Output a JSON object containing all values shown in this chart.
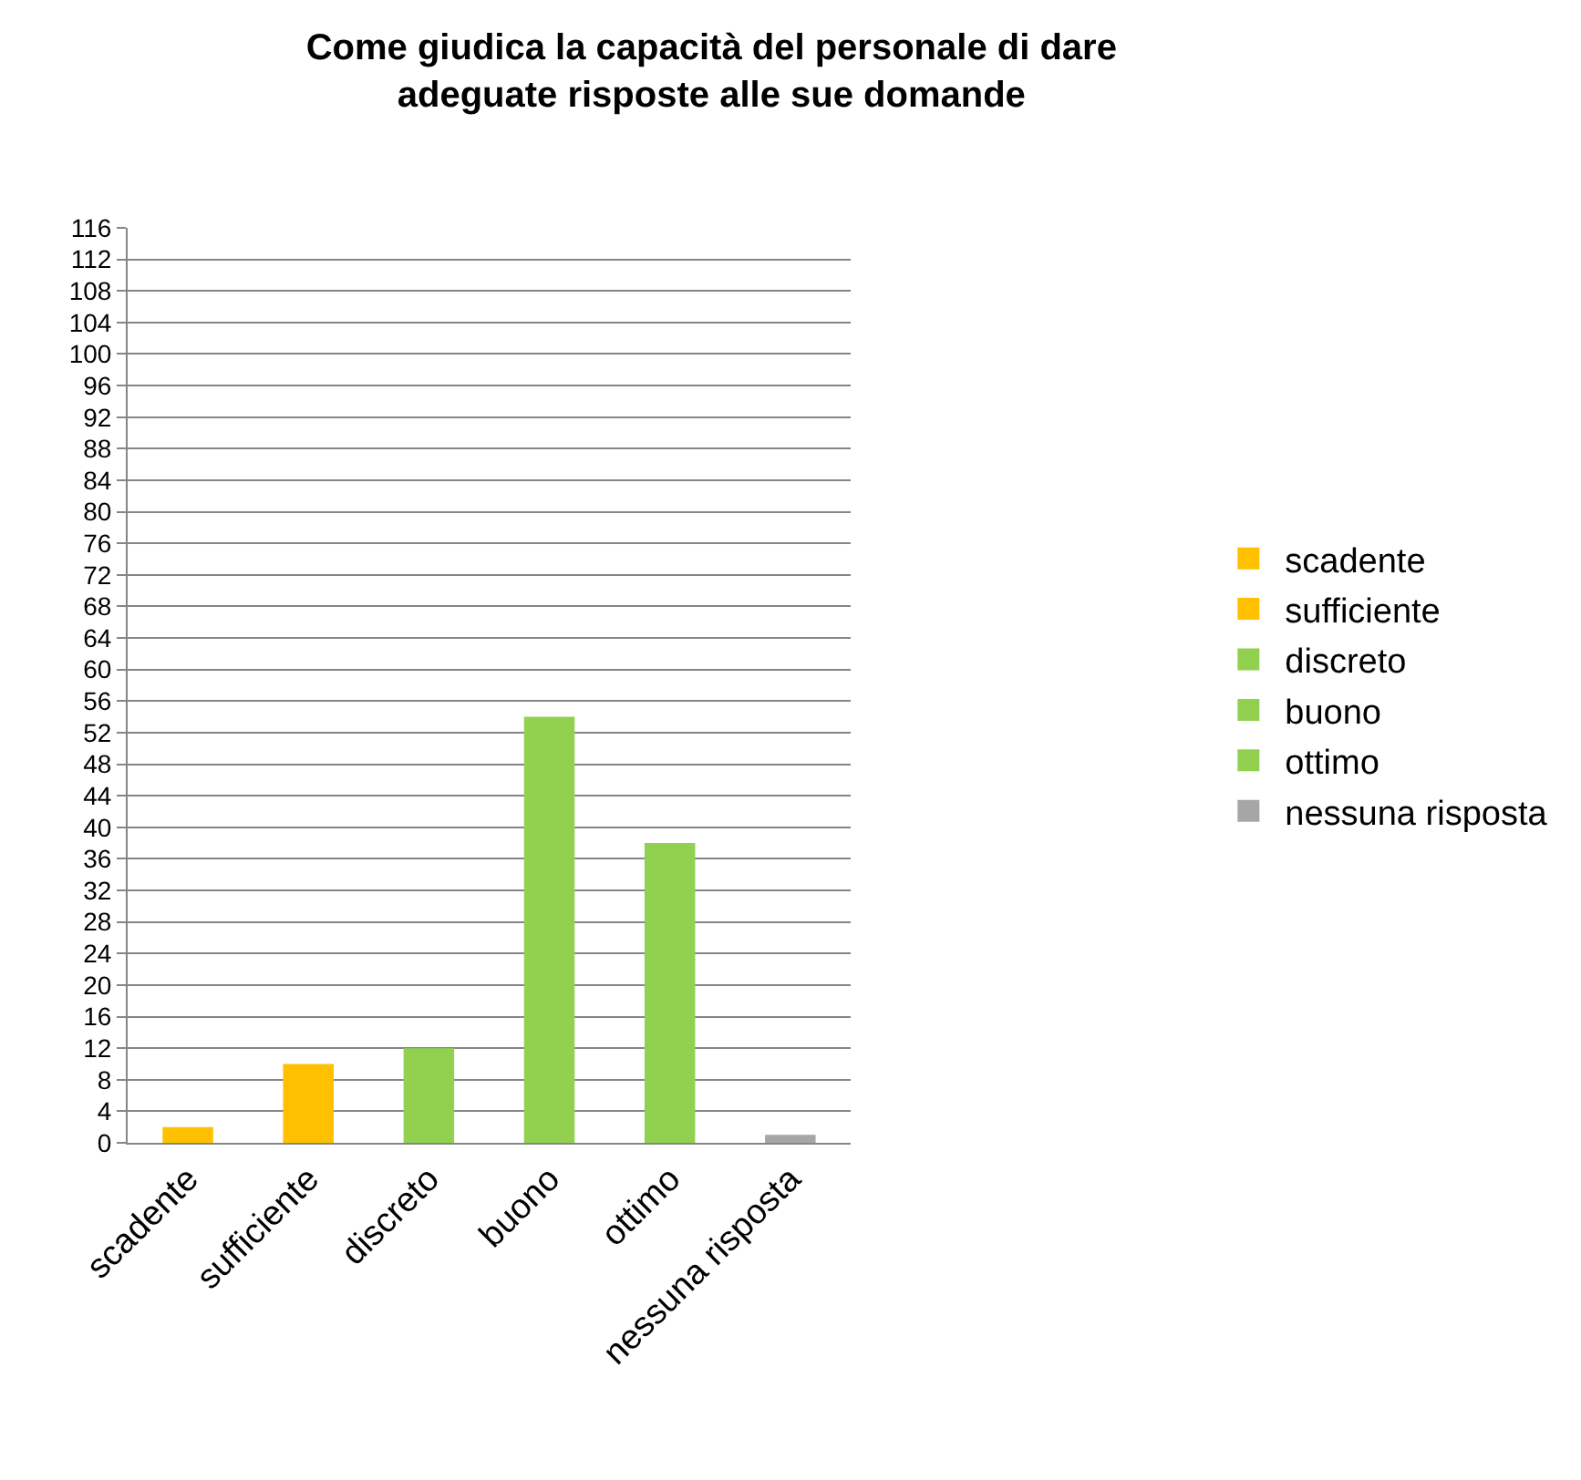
{
  "chart_data": {
    "type": "bar",
    "title": "Come giudica la capacità del personale di dare\nadeguate risposte alle sue domande",
    "categories": [
      "scadente",
      "sufficiente",
      "discreto",
      "buono",
      "ottimo",
      "nessuna risposta"
    ],
    "series": [
      {
        "name": "scadente",
        "color": "#ffc000",
        "values": [
          2,
          null,
          null,
          null,
          null,
          null
        ]
      },
      {
        "name": "sufficiente",
        "color": "#ffc000",
        "values": [
          null,
          10,
          null,
          null,
          null,
          null
        ]
      },
      {
        "name": "discreto",
        "color": "#92d050",
        "values": [
          null,
          null,
          12,
          null,
          null,
          null
        ]
      },
      {
        "name": "buono",
        "color": "#92d050",
        "values": [
          null,
          null,
          null,
          54,
          null,
          null
        ]
      },
      {
        "name": "ottimo",
        "color": "#92d050",
        "values": [
          null,
          null,
          null,
          null,
          38,
          null
        ]
      },
      {
        "name": "nessuna risposta",
        "color": "#a6a6a6",
        "values": [
          null,
          null,
          null,
          null,
          null,
          1
        ]
      }
    ],
    "ylim": [
      0,
      116
    ],
    "yticks": [
      0,
      4,
      8,
      12,
      16,
      20,
      24,
      28,
      32,
      36,
      40,
      44,
      48,
      52,
      56,
      60,
      64,
      68,
      72,
      76,
      80,
      84,
      88,
      92,
      96,
      100,
      104,
      108,
      112,
      116
    ],
    "grid": "y",
    "legend": "right"
  }
}
